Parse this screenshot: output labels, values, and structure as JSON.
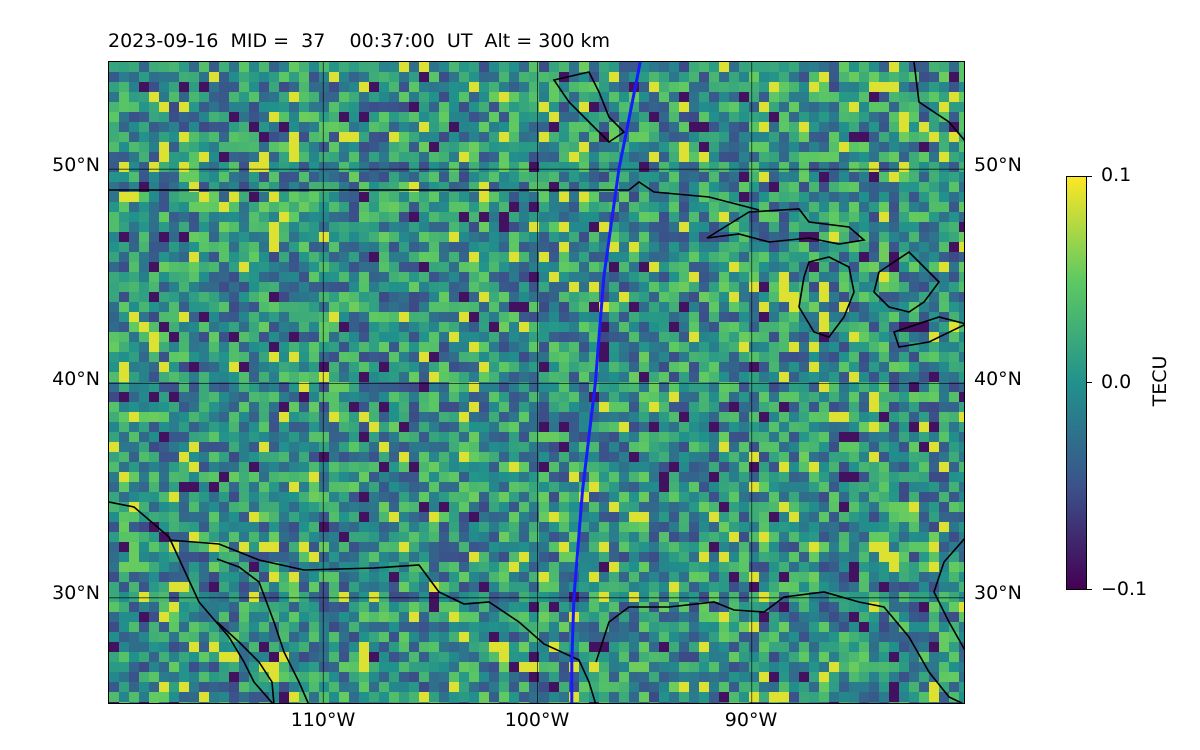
{
  "title": "2023-09-16  MID =  37    00:37:00  UT  Alt = 300 km",
  "map": {
    "lon_range": [
      -120,
      -80
    ],
    "lat_range": [
      25,
      55
    ],
    "lat_ticks": [
      {
        "value": 30,
        "label": "30°N"
      },
      {
        "value": 40,
        "label": "40°N"
      },
      {
        "value": 50,
        "label": "50°N"
      }
    ],
    "lon_ticks": [
      {
        "value": -110,
        "label": "110°W"
      },
      {
        "value": -100,
        "label": "100°W"
      },
      {
        "value": -90,
        "label": "90°W"
      }
    ],
    "grid": true,
    "field": "TEC perturbation (TECU), pixelated heat map",
    "track_color": "#1a1aff",
    "track": [
      [
        -95.2,
        55
      ],
      [
        -95.8,
        52
      ],
      [
        -96.2,
        50
      ],
      [
        -96.9,
        45
      ],
      [
        -97.3,
        40
      ],
      [
        -97.9,
        35
      ],
      [
        -98.3,
        30
      ],
      [
        -98.4,
        27
      ],
      [
        -98.4,
        25
      ]
    ]
  },
  "colorbar": {
    "label": "TECU",
    "min": -0.1,
    "max": 0.1,
    "ticks": [
      {
        "value": 0.1,
        "label": "0.1"
      },
      {
        "value": 0.0,
        "label": "0.0"
      },
      {
        "value": -0.1,
        "label": "−0.1"
      }
    ],
    "colormap": "viridis",
    "colors": [
      "#440154",
      "#3b528b",
      "#21918c",
      "#5ec962",
      "#fde725"
    ]
  }
}
